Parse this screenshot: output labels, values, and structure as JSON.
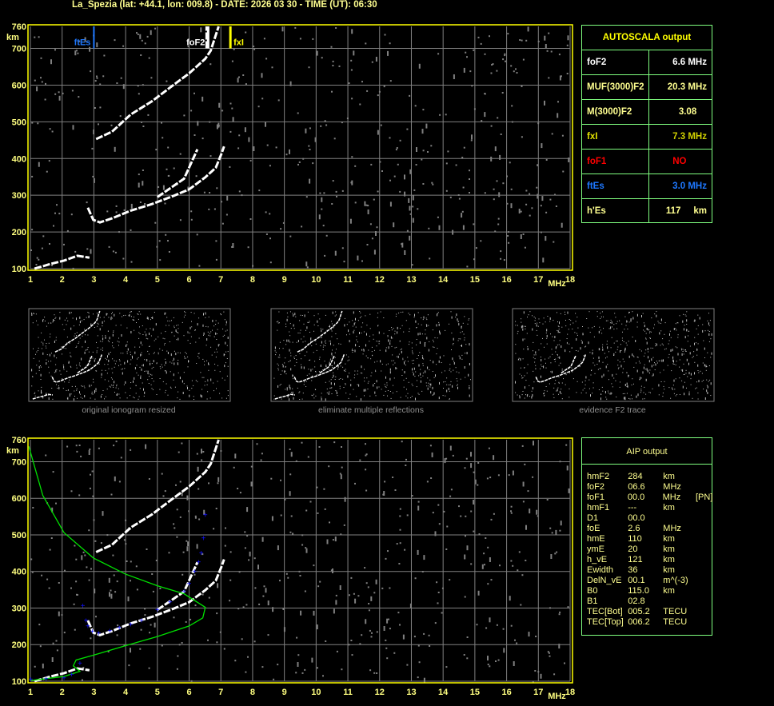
{
  "header": {
    "title": "La_Spezia (lat: +44.1, lon: 009.8) - DATE: 2026 03 30 - TIME (UT): 06:30"
  },
  "colors": {
    "frame": "#ffff00",
    "grid": "#808080",
    "axis_text": "#ffff80",
    "trace": "#ffffff",
    "noise": "#808080",
    "ftEs": "#1e78ff",
    "fxI": "#ffff00",
    "foF2": "#ffffff",
    "profile": "#00e000",
    "aip_points": "#1010ff",
    "panel_border": "#80ff80"
  },
  "chart_data": [
    {
      "type": "scatter",
      "title": "",
      "xlabel": "MHz",
      "ylabel": "km",
      "xlim": [
        1,
        18
      ],
      "ylim": [
        100,
        760
      ],
      "x_ticks": [
        "1",
        "2",
        "3",
        "4",
        "5",
        "6",
        "7",
        "8",
        "9",
        "10",
        "11",
        "12",
        "13",
        "14",
        "15",
        "16",
        "17",
        "18"
      ],
      "y_ticks": [
        "100",
        "200",
        "300",
        "400",
        "500",
        "600",
        "700",
        "760"
      ],
      "grid": true,
      "markers": [
        {
          "label": "ftEs",
          "f": 3.0,
          "color": "#1e78ff"
        },
        {
          "label": "foF2",
          "f": 6.6,
          "color": "#ffffff"
        },
        {
          "label": "fxI",
          "f": 7.3,
          "color": "#ffff00"
        }
      ],
      "traces": [
        [
          [
            1.13,
            100
          ],
          [
            1.64,
            113
          ],
          [
            2.06,
            122
          ],
          [
            2.48,
            135
          ],
          [
            2.86,
            130
          ]
        ],
        [
          [
            2.81,
            266
          ],
          [
            2.98,
            233
          ],
          [
            3.19,
            226
          ],
          [
            3.57,
            237
          ],
          [
            4.16,
            258
          ],
          [
            4.83,
            276
          ],
          [
            5.5,
            298
          ],
          [
            6.0,
            316
          ],
          [
            6.51,
            349
          ],
          [
            6.84,
            375
          ],
          [
            7.01,
            411
          ],
          [
            7.1,
            433
          ]
        ],
        [
          [
            5.0,
            295
          ],
          [
            5.84,
            345
          ],
          [
            6.26,
            425
          ]
        ],
        [
          [
            3.07,
            453
          ],
          [
            3.57,
            473
          ],
          [
            4.16,
            520
          ],
          [
            4.83,
            556
          ],
          [
            5.5,
            600
          ],
          [
            6.0,
            632
          ],
          [
            6.51,
            672
          ],
          [
            6.68,
            694
          ],
          [
            6.93,
            760
          ]
        ],
        [
          [
            6.55,
            700
          ],
          [
            6.55,
            760
          ]
        ]
      ]
    },
    {
      "type": "scatter",
      "title": "",
      "xlabel": "MHz",
      "ylabel": "km",
      "xlim": [
        1,
        18
      ],
      "ylim": [
        100,
        760
      ],
      "x_ticks": [
        "1",
        "2",
        "3",
        "4",
        "5",
        "6",
        "7",
        "8",
        "9",
        "10",
        "11",
        "12",
        "13",
        "14",
        "15",
        "16",
        "17",
        "18"
      ],
      "y_ticks": [
        "100",
        "200",
        "300",
        "400",
        "500",
        "600",
        "700",
        "760"
      ],
      "grid": true,
      "traces": [
        [
          [
            1.13,
            100
          ],
          [
            1.64,
            113
          ],
          [
            2.06,
            122
          ],
          [
            2.48,
            135
          ],
          [
            2.86,
            130
          ]
        ],
        [
          [
            2.81,
            266
          ],
          [
            2.98,
            233
          ],
          [
            3.19,
            226
          ],
          [
            3.57,
            237
          ],
          [
            4.16,
            258
          ],
          [
            4.83,
            276
          ],
          [
            5.5,
            298
          ],
          [
            6.0,
            316
          ],
          [
            6.51,
            349
          ],
          [
            6.84,
            375
          ],
          [
            7.01,
            411
          ],
          [
            7.1,
            433
          ]
        ],
        [
          [
            5.0,
            295
          ],
          [
            5.84,
            345
          ],
          [
            6.26,
            425
          ]
        ],
        [
          [
            3.07,
            453
          ],
          [
            3.57,
            473
          ],
          [
            4.16,
            520
          ],
          [
            4.83,
            556
          ],
          [
            5.5,
            600
          ],
          [
            6.0,
            632
          ],
          [
            6.51,
            672
          ],
          [
            6.68,
            694
          ],
          [
            6.93,
            760
          ]
        ]
      ],
      "profile": [
        [
          0.95,
          742
        ],
        [
          1.39,
          608
        ],
        [
          2.06,
          506
        ],
        [
          2.98,
          437
        ],
        [
          3.99,
          393
        ],
        [
          5.0,
          361
        ],
        [
          5.84,
          339
        ],
        [
          6.51,
          302
        ],
        [
          6.43,
          273
        ],
        [
          6.0,
          251
        ],
        [
          5.0,
          222
        ],
        [
          3.99,
          197
        ],
        [
          2.98,
          171
        ],
        [
          2.44,
          158
        ],
        [
          2.35,
          142
        ],
        [
          2.56,
          127
        ],
        [
          2.06,
          113
        ],
        [
          1.01,
          102
        ]
      ],
      "aip_points": [
        [
          1.01,
          104
        ],
        [
          1.5,
          105
        ],
        [
          2.06,
          108
        ],
        [
          2.3,
          118
        ],
        [
          2.56,
          148
        ],
        [
          2.65,
          305
        ],
        [
          2.75,
          265
        ],
        [
          2.81,
          250
        ],
        [
          2.95,
          236
        ],
        [
          3.15,
          230
        ],
        [
          3.5,
          237
        ],
        [
          3.8,
          245
        ],
        [
          4.16,
          254
        ],
        [
          4.5,
          265
        ],
        [
          5.0,
          294
        ],
        [
          5.4,
          315
        ],
        [
          5.84,
          345
        ],
        [
          6.0,
          365
        ],
        [
          6.17,
          399
        ],
        [
          6.3,
          425
        ],
        [
          6.38,
          450
        ],
        [
          6.45,
          490
        ],
        [
          6.51,
          554
        ]
      ]
    }
  ],
  "thumbnails": [
    {
      "caption": "original ionogram resized"
    },
    {
      "caption": "eliminate multiple reflections"
    },
    {
      "caption": "evidence F2 trace"
    }
  ],
  "autoscala": {
    "title": "AUTOSCALA output",
    "rows": [
      {
        "label": "foF2",
        "value": "6.6 MHz",
        "label_color": "#ffffff",
        "value_color": "#ffffff"
      },
      {
        "label": "MUF(3000)F2",
        "value": "20.3 MHz",
        "label_color": "#ffff90",
        "value_color": "#ffff90"
      },
      {
        "label": "M(3000)F2",
        "value": "3.08    ",
        "label_color": "#ffff90",
        "value_color": "#ffff90"
      },
      {
        "label": "fxI",
        "value": "7.3 MHz",
        "label_color": "#e0e000",
        "value_color": "#d0d000"
      },
      {
        "label": "foF1",
        "value": "NO        ",
        "label_color": "#ff0000",
        "value_color": "#ff0000"
      },
      {
        "label": "ftEs",
        "value": "3.0 MHz",
        "label_color": "#1e78ff",
        "value_color": "#1e78ff"
      },
      {
        "label": "h'Es",
        "value": "117     km",
        "label_color": "#ffff90",
        "value_color": "#ffff90"
      }
    ]
  },
  "aip": {
    "title": "AIP output",
    "rows": [
      [
        "hmF2",
        "284",
        "km",
        ""
      ],
      [
        "foF2",
        "06.6",
        "MHz",
        ""
      ],
      [
        "foF1",
        "00.0",
        "MHz",
        "[PN]"
      ],
      [
        "hmF1",
        "---",
        "km",
        ""
      ],
      [
        "D1",
        "00.0",
        "",
        ""
      ],
      [
        "foE",
        "2.6",
        "MHz",
        ""
      ],
      [
        "hmE",
        "110",
        "km",
        ""
      ],
      [
        "ymE",
        "20",
        "km",
        ""
      ],
      [
        "h_vE",
        "121",
        "km",
        ""
      ],
      [
        "Ewidth",
        "36",
        "km",
        ""
      ],
      [
        "DelN_vE",
        "00.1",
        "m^(-3)",
        ""
      ],
      [
        "B0",
        "115.0",
        "km",
        ""
      ],
      [
        "B1",
        "02.8",
        "",
        ""
      ],
      [
        "TEC[Bot]",
        "005.2",
        "TECU",
        ""
      ],
      [
        "TEC[Top]",
        "006.2",
        "TECU",
        ""
      ]
    ]
  }
}
